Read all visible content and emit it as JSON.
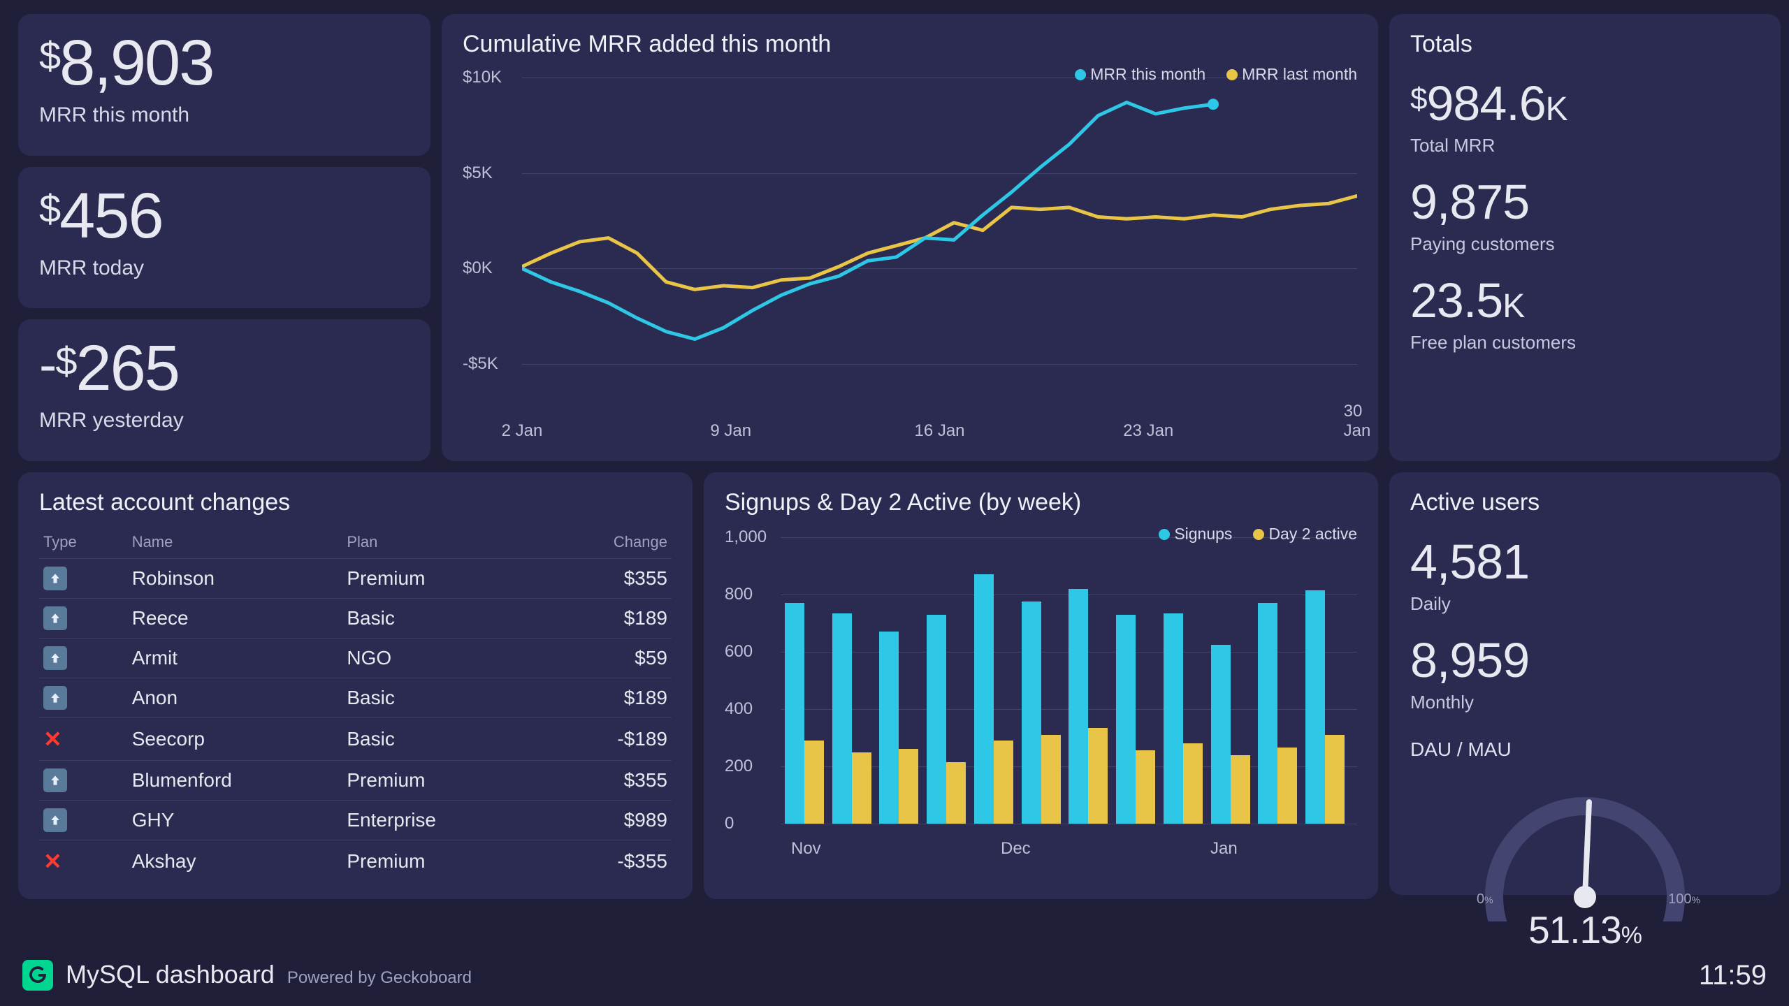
{
  "colors": {
    "bg": "#1f1f3a",
    "card": "#2b2b52",
    "text": "#e8e8f0",
    "muted": "#c0c0d8",
    "grid": "#42426a",
    "series_a": "#2ec7e6",
    "series_b": "#e8c547",
    "cancel_red": "#ff3b30",
    "logo_green": "#00d68f",
    "up_icon_bg": "#5a7a9a"
  },
  "kpis": [
    {
      "value": "8,903",
      "prefix": "$",
      "neg": false,
      "label": "MRR this month"
    },
    {
      "value": "456",
      "prefix": "$",
      "neg": false,
      "label": "MRR today"
    },
    {
      "value": "265",
      "prefix": "$",
      "neg": true,
      "label": "MRR yesterday"
    }
  ],
  "line_chart": {
    "title": "Cumulative MRR added this month",
    "legend": [
      {
        "label": "MRR this month",
        "color": "#2ec7e6"
      },
      {
        "label": "MRR last month",
        "color": "#e8c547"
      }
    ],
    "y_ticks": [
      {
        "label": "$10K",
        "v": 10000
      },
      {
        "label": "$5K",
        "v": 5000
      },
      {
        "label": "$0K",
        "v": 0
      },
      {
        "label": "-$5K",
        "v": -5000
      }
    ],
    "y_min": -5000,
    "y_max": 10000,
    "x_ticks": [
      "2 Jan",
      "9 Jan",
      "16 Jan",
      "23 Jan",
      "30 Jan"
    ],
    "x_count": 30,
    "series_a": [
      0,
      -700,
      -1200,
      -1800,
      -2600,
      -3300,
      -3700,
      -3100,
      -2200,
      -1400,
      -800,
      -400,
      400,
      600,
      1600,
      1500,
      2800,
      4000,
      5300,
      6500,
      8000,
      8700,
      8100,
      8400,
      8600
    ],
    "series_b": [
      100,
      800,
      1400,
      1600,
      800,
      -700,
      -1100,
      -900,
      -1000,
      -600,
      -500,
      100,
      800,
      1200,
      1600,
      2400,
      2000,
      3200,
      3100,
      3200,
      2700,
      2600,
      2700,
      2600,
      2800,
      2700,
      3100,
      3300,
      3400,
      3800
    ]
  },
  "totals": {
    "title": "Totals",
    "items": [
      {
        "prefix": "$",
        "value": "984.6",
        "suffix": "K",
        "label": "Total MRR"
      },
      {
        "prefix": "",
        "value": "9,875",
        "suffix": "",
        "label": "Paying customers"
      },
      {
        "prefix": "",
        "value": "23.5",
        "suffix": "K",
        "label": "Free plan customers"
      }
    ]
  },
  "table": {
    "title": "Latest account changes",
    "columns": [
      "Type",
      "Name",
      "Plan",
      "Change"
    ],
    "col_widths": [
      "14%",
      "34%",
      "32%",
      "20%"
    ],
    "rows": [
      {
        "type": "up",
        "name": "Robinson",
        "plan": "Premium",
        "change": "$355"
      },
      {
        "type": "up",
        "name": "Reece",
        "plan": "Basic",
        "change": "$189"
      },
      {
        "type": "up",
        "name": "Armit",
        "plan": "NGO",
        "change": "$59"
      },
      {
        "type": "up",
        "name": "Anon",
        "plan": "Basic",
        "change": "$189"
      },
      {
        "type": "cancel",
        "name": "Seecorp",
        "plan": "Basic",
        "change": "-$189"
      },
      {
        "type": "up",
        "name": "Blumenford",
        "plan": "Premium",
        "change": "$355"
      },
      {
        "type": "up",
        "name": "GHY",
        "plan": "Enterprise",
        "change": "$989"
      },
      {
        "type": "cancel",
        "name": "Akshay",
        "plan": "Premium",
        "change": "-$355"
      }
    ]
  },
  "bar_chart": {
    "title": "Signups & Day 2 Active (by week)",
    "legend": [
      {
        "label": "Signups",
        "color": "#2ec7e6"
      },
      {
        "label": "Day 2 active",
        "color": "#e8c547"
      }
    ],
    "y_ticks": [
      {
        "label": "1,000",
        "v": 1000
      },
      {
        "label": "800",
        "v": 800
      },
      {
        "label": "600",
        "v": 600
      },
      {
        "label": "400",
        "v": 400
      },
      {
        "label": "200",
        "v": 200
      },
      {
        "label": "0",
        "v": 0
      }
    ],
    "y_max": 1000,
    "x_labels": [
      "Nov",
      "Dec",
      "Jan"
    ],
    "signups": [
      770,
      735,
      670,
      730,
      870,
      775,
      820,
      730,
      735,
      625,
      770,
      815
    ],
    "day2": [
      290,
      250,
      260,
      215,
      290,
      310,
      335,
      255,
      280,
      240,
      265,
      310
    ]
  },
  "active_users": {
    "title": "Active users",
    "items": [
      {
        "value": "4,581",
        "label": "Daily"
      },
      {
        "value": "8,959",
        "label": "Monthly"
      }
    ],
    "gauge": {
      "label": "DAU / MAU",
      "value": "51.13",
      "suffix": "%",
      "min": "0",
      "max": "100",
      "pct": 51.13
    }
  },
  "footer": {
    "name": "MySQL dashboard",
    "powered": "Powered by Geckoboard",
    "time": "11:59"
  }
}
